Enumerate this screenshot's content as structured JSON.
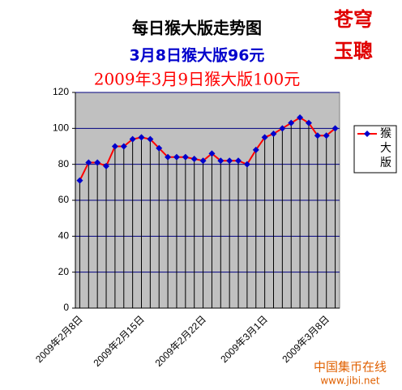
{
  "chart_data": {
    "type": "line",
    "title": "每日猴大版走势图",
    "subtitle": "3月8日猴大版96元",
    "annotation": "2009年3月9日猴大版100元",
    "stamp": [
      "苍穹",
      "玉聰"
    ],
    "watermark": [
      "中国集币在线",
      "www.jibi.net"
    ],
    "categories": [
      "2009年2月8日",
      null,
      null,
      null,
      null,
      null,
      null,
      "2009年2月15日",
      null,
      null,
      null,
      null,
      null,
      null,
      "2009年2月22日",
      null,
      null,
      null,
      null,
      null,
      null,
      "2009年3月1日",
      null,
      null,
      null,
      null,
      null,
      null,
      "2009年3月8日",
      null
    ],
    "series": [
      {
        "name": "猴大版",
        "color": "#ff0000",
        "marker_color": "#0000cc",
        "values": [
          71,
          81,
          81,
          79,
          90,
          90,
          94,
          95,
          94,
          89,
          84,
          84,
          84,
          83,
          82,
          86,
          82,
          82,
          82,
          80,
          88,
          95,
          97,
          100,
          103,
          106,
          103,
          96,
          96,
          100
        ]
      }
    ],
    "ylim": [
      0,
      120
    ],
    "yticks": [
      0,
      20,
      40,
      60,
      80,
      100,
      120
    ],
    "grid": true,
    "plot_background": "#c0c0c0",
    "legend": "right"
  }
}
